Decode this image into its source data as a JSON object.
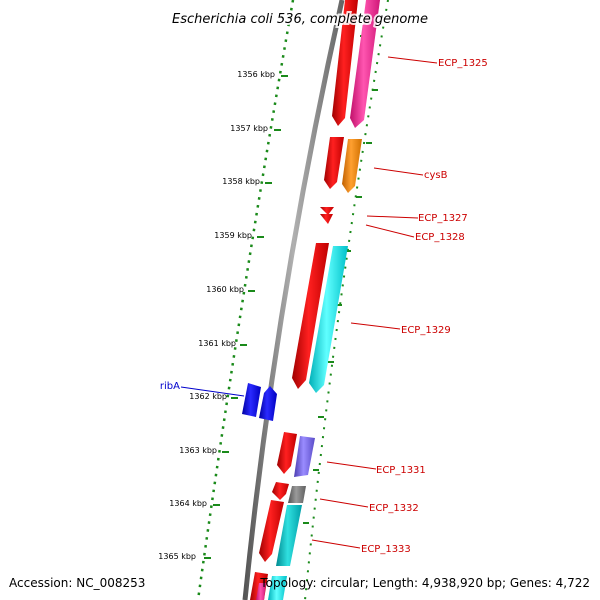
{
  "title": "Escherichia coli 536, complete genome",
  "ticks": [
    "1356 kbp",
    "1357 kbp",
    "1358 kbp",
    "1359 kbp",
    "1360 kbp",
    "1361 kbp",
    "1362 kbp",
    "1363 kbp",
    "1364 kbp",
    "1365 kbp"
  ],
  "labels": {
    "ecp1325": "ECP_1325",
    "cysB": "cysB",
    "ecp1327": "ECP_1327",
    "ecp1328": "ECP_1328",
    "ecp1329": "ECP_1329",
    "ribA": "ribA",
    "ecp1331": "ECP_1331",
    "ecp1332": "ECP_1332",
    "ecp1333": "ECP_1333"
  },
  "colors": {
    "forward_label": "#cc0000",
    "reverse_label": "#0000cc",
    "tick": "#1a8a1a"
  },
  "footer": {
    "accession": "Accession: NC_008253",
    "summary": "Topology: circular; Length: 4,938,920 bp; Genes: 4,722"
  }
}
